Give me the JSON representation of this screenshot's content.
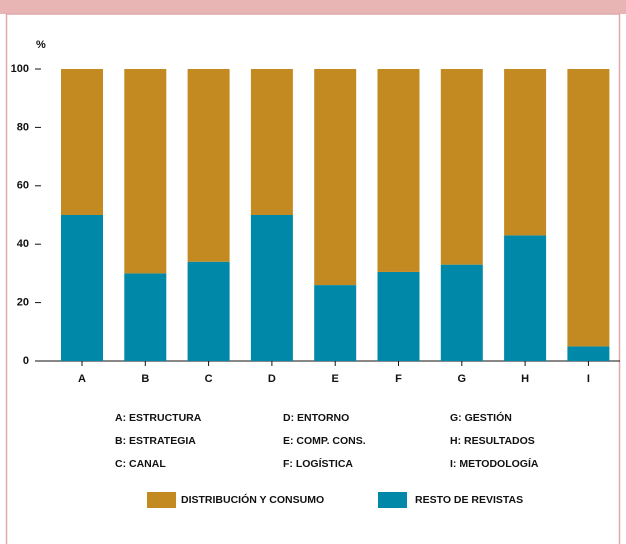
{
  "chart_data": {
    "type": "stacked_bar",
    "y_label": "%",
    "categories": [
      "A",
      "B",
      "C",
      "D",
      "E",
      "F",
      "G",
      "H",
      "I"
    ],
    "series": [
      {
        "name": "RESTO DE REVISTAS",
        "color": "#0088a8",
        "values": [
          50,
          30,
          34,
          50,
          26,
          30.5,
          33,
          43,
          5
        ]
      },
      {
        "name": "DISTRIBUCIÓN Y CONSUMO",
        "color": "#c48a22",
        "values": [
          50,
          70,
          66,
          50,
          74,
          69.5,
          67,
          57,
          95
        ]
      }
    ],
    "ylim": [
      0,
      100
    ],
    "yticks": [
      0,
      20,
      40,
      60,
      80,
      100
    ],
    "notes": [
      "A: ESTRUCTURA",
      "B: ESTRATEGIA",
      "C: CANAL",
      "D: ENTORNO",
      "E: COMP. CONS.",
      "F: LOGÍSTICA",
      "G: GESTIÓN",
      "H: RESULTADOS",
      "I: METODOLOGÍA"
    ]
  }
}
